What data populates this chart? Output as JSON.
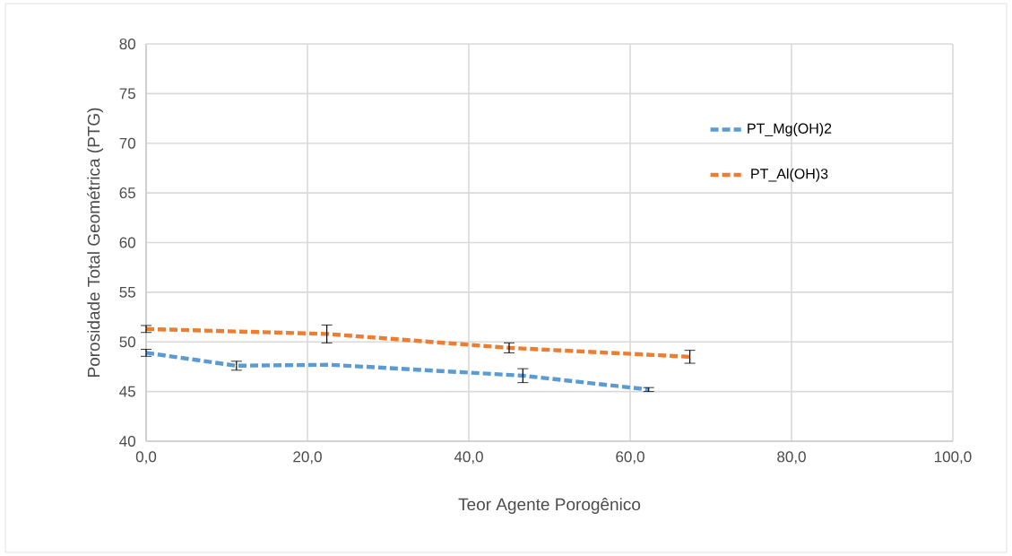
{
  "chart_data": {
    "type": "line",
    "xlabel": "Teor Agente Porogênico",
    "ylabel": "Porosidade Total Geométrica (PTG)",
    "xlim": [
      0,
      100
    ],
    "ylim": [
      40,
      80
    ],
    "xticks": [
      {
        "value": 0,
        "label": "0,0"
      },
      {
        "value": 20,
        "label": "20,0"
      },
      {
        "value": 40,
        "label": "40,0"
      },
      {
        "value": 60,
        "label": "60,0"
      },
      {
        "value": 80,
        "label": "80,0"
      },
      {
        "value": 100,
        "label": "100,0"
      }
    ],
    "yticks": [
      40,
      45,
      50,
      55,
      60,
      65,
      70,
      75,
      80
    ],
    "grid": true,
    "legend": "right",
    "marker": "none",
    "line_style": "dashed",
    "series": [
      {
        "name": "PT_Mg(OH)2",
        "color": "#5b9bd5",
        "x": [
          0,
          11.2,
          22.7,
          46.7,
          62.3
        ],
        "values": [
          48.9,
          47.6,
          47.7,
          46.6,
          45.2
        ],
        "errors": [
          0.35,
          0.45,
          null,
          0.7,
          0.2
        ]
      },
      {
        "name": "PT_Al(OH)3",
        "color": "#ed7d31",
        "x": [
          0,
          22.4,
          45,
          67.4
        ],
        "values": [
          51.3,
          50.8,
          49.4,
          48.5
        ],
        "errors": [
          0.35,
          0.9,
          0.5,
          0.65
        ]
      }
    ]
  }
}
